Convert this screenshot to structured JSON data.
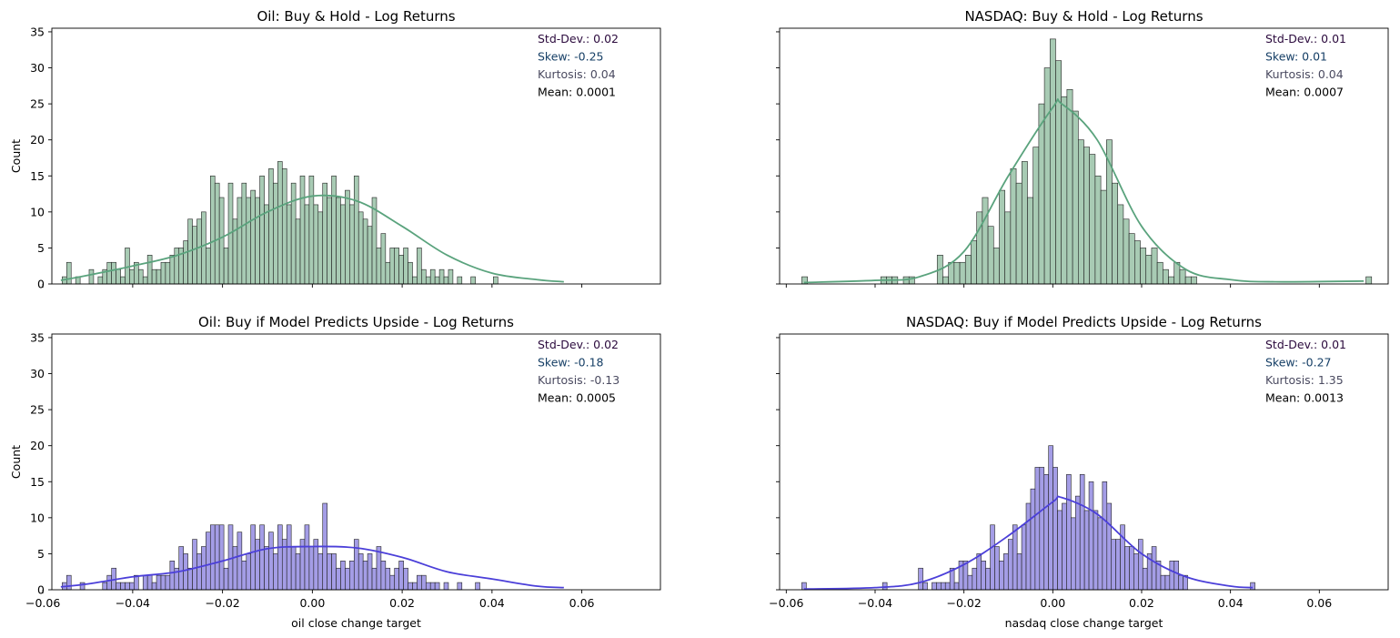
{
  "colors": {
    "green_fill": "#a8cbb4",
    "green_line": "#5aa37d",
    "purple_fill": "#a49de6",
    "purple_line": "#4b3fd9",
    "stat_std": "#2b0a3d",
    "stat_skew": "#163f66",
    "stat_kurt": "#4a4a60",
    "stat_mean": "#000000"
  },
  "chart_data": [
    {
      "type": "histogram",
      "title": "Oil: Buy & Hold - Log Returns",
      "xlabel": "",
      "ylabel": "Count",
      "xlim": [
        -0.058,
        0.0775
      ],
      "ylim": [
        0,
        35.5
      ],
      "xticks": [
        "−0.06",
        "−0.04",
        "−0.02",
        "0.00",
        "0.02",
        "0.04",
        "0.06"
      ],
      "xtick_values": [
        -0.06,
        -0.04,
        -0.02,
        0.0,
        0.02,
        0.04,
        0.06
      ],
      "show_xtick_labels": false,
      "yticks": [
        0,
        5,
        10,
        15,
        20,
        25,
        30,
        35
      ],
      "show_ytick_labels": true,
      "color": "green",
      "bin_start": -0.0557,
      "bin_width": 0.001,
      "counts": [
        1,
        3,
        0,
        1,
        0,
        0,
        2,
        0,
        1,
        2,
        3,
        3,
        2,
        1,
        5,
        2,
        3,
        2,
        1,
        4,
        2,
        2,
        3,
        3,
        4,
        5,
        5,
        6,
        9,
        8,
        9,
        10,
        5,
        15,
        14,
        12,
        5,
        14,
        9,
        12,
        14,
        12,
        13,
        12,
        15,
        11,
        16,
        14,
        17,
        16,
        11,
        14,
        9,
        15,
        11,
        15,
        11,
        10,
        14,
        12,
        15,
        12,
        11,
        13,
        11,
        15,
        10,
        9,
        8,
        12,
        5,
        7,
        3,
        5,
        5,
        4,
        5,
        3,
        1,
        5,
        2,
        1,
        2,
        1,
        2,
        1,
        2,
        0,
        1,
        0,
        0,
        1,
        0,
        0,
        0,
        0,
        1
      ],
      "kde_x": [
        -0.056,
        -0.05,
        -0.04,
        -0.03,
        -0.02,
        -0.01,
        0.0,
        0.01,
        0.02,
        0.03,
        0.04,
        0.05,
        0.056
      ],
      "kde_y": [
        0.5,
        1.2,
        2.5,
        4.0,
        6.5,
        10.0,
        12.2,
        11.5,
        8.0,
        4.0,
        1.5,
        0.6,
        0.3
      ],
      "stats": {
        "std": "Std-Dev.: 0.02",
        "skew": "Skew: -0.25",
        "kurt": "Kurtosis: 0.04",
        "mean": "Mean: 0.0001"
      }
    },
    {
      "type": "histogram",
      "title": "NASDAQ: Buy & Hold - Log Returns",
      "xlabel": "",
      "ylabel": "",
      "xlim": [
        -0.0615,
        0.0755
      ],
      "ylim": [
        0,
        35.5
      ],
      "xticks": [
        "−0.06",
        "−0.04",
        "−0.02",
        "0.00",
        "0.02",
        "0.04",
        "0.06"
      ],
      "xtick_values": [
        -0.06,
        -0.04,
        -0.02,
        0.0,
        0.02,
        0.04,
        0.06
      ],
      "show_xtick_labels": false,
      "yticks": [
        0,
        5,
        10,
        15,
        20,
        25,
        30,
        35
      ],
      "show_ytick_labels": false,
      "color": "green",
      "bin_start": -0.0565,
      "bin_width": 0.00127,
      "counts": [
        1,
        0,
        0,
        0,
        0,
        0,
        0,
        0,
        0,
        0,
        0,
        0,
        0,
        0,
        1,
        1,
        1,
        0,
        1,
        1,
        0,
        0,
        0,
        0,
        4,
        1,
        3,
        3,
        3,
        4,
        6,
        10,
        12,
        8,
        5,
        13,
        10,
        16,
        14,
        17,
        12,
        19,
        25,
        30,
        34,
        31,
        26,
        27,
        24,
        20,
        19,
        18,
        15,
        13,
        20,
        14,
        11,
        9,
        7,
        6,
        5,
        4,
        5,
        3,
        2,
        1,
        3,
        2,
        1,
        1,
        0,
        0,
        0,
        0,
        0,
        0,
        0,
        0,
        0,
        0,
        0,
        0,
        0,
        0,
        0,
        0,
        0,
        0,
        0,
        0,
        0,
        0,
        0,
        0,
        0,
        0,
        0,
        0,
        0,
        0,
        1
      ],
      "kde_x": [
        -0.056,
        -0.04,
        -0.03,
        -0.02,
        -0.01,
        0.0,
        0.002,
        0.01,
        0.02,
        0.03,
        0.04,
        0.05,
        0.07
      ],
      "kde_y": [
        0.2,
        0.5,
        1.0,
        4.5,
        15.0,
        24.5,
        25.0,
        20.0,
        8.0,
        2.0,
        0.6,
        0.3,
        0.4
      ],
      "stats": {
        "std": "Std-Dev.: 0.01",
        "skew": "Skew: 0.01",
        "kurt": "Kurtosis: 0.04",
        "mean": "Mean: 0.0007"
      }
    },
    {
      "type": "histogram",
      "title": "Oil: Buy if Model Predicts Upside - Log Returns",
      "xlabel": "oil close change target",
      "ylabel": "Count",
      "xlim": [
        -0.058,
        0.0775
      ],
      "ylim": [
        0,
        35.5
      ],
      "xticks": [
        "−0.06",
        "−0.04",
        "−0.02",
        "0.00",
        "0.02",
        "0.04",
        "0.06"
      ],
      "xtick_values": [
        -0.06,
        -0.04,
        -0.02,
        0.0,
        0.02,
        0.04,
        0.06
      ],
      "show_xtick_labels": true,
      "yticks": [
        0,
        5,
        10,
        15,
        20,
        25,
        30,
        35
      ],
      "show_ytick_labels": true,
      "color": "purple",
      "bin_start": -0.0557,
      "bin_width": 0.001,
      "counts": [
        1,
        2,
        0,
        0,
        1,
        0,
        0,
        0,
        0,
        1,
        2,
        3,
        1,
        1,
        1,
        1,
        2,
        0,
        2,
        2,
        1,
        2,
        2,
        2,
        4,
        3,
        6,
        5,
        3,
        7,
        5,
        6,
        8,
        9,
        9,
        9,
        3,
        9,
        6,
        8,
        4,
        5,
        9,
        7,
        9,
        6,
        8,
        5,
        9,
        7,
        9,
        6,
        5,
        7,
        9,
        6,
        7,
        5,
        12,
        5,
        5,
        3,
        4,
        3,
        4,
        7,
        5,
        4,
        5,
        3,
        6,
        4,
        3,
        2,
        3,
        4,
        3,
        1,
        1,
        2,
        2,
        1,
        1,
        1,
        0,
        1,
        0,
        0,
        1,
        0,
        0,
        0,
        1
      ],
      "kde_x": [
        -0.056,
        -0.05,
        -0.04,
        -0.03,
        -0.02,
        -0.01,
        0.0,
        0.01,
        0.02,
        0.03,
        0.04,
        0.05,
        0.056
      ],
      "kde_y": [
        0.4,
        0.8,
        1.8,
        2.5,
        4.0,
        5.7,
        6.0,
        5.8,
        4.5,
        2.5,
        1.5,
        0.5,
        0.3
      ],
      "stats": {
        "std": "Std-Dev.: 0.02",
        "skew": "Skew: -0.18",
        "kurt": "Kurtosis: -0.13",
        "mean": "Mean: 0.0005"
      }
    },
    {
      "type": "histogram",
      "title": "NASDAQ: Buy if Model Predicts Upside - Log Returns",
      "xlabel": "nasdaq close change target",
      "ylabel": "",
      "xlim": [
        -0.0615,
        0.0755
      ],
      "ylim": [
        0,
        35.5
      ],
      "xticks": [
        "−0.06",
        "−0.04",
        "−0.02",
        "0.00",
        "0.02",
        "0.04",
        "0.06"
      ],
      "xtick_values": [
        -0.06,
        -0.04,
        -0.02,
        0.0,
        0.02,
        0.04,
        0.06
      ],
      "show_xtick_labels": true,
      "yticks": [
        0,
        5,
        10,
        15,
        20,
        25,
        30,
        35
      ],
      "show_ytick_labels": false,
      "color": "purple",
      "bin_start": -0.0565,
      "bin_width": 0.00101,
      "counts": [
        1,
        0,
        0,
        0,
        0,
        0,
        0,
        0,
        0,
        0,
        0,
        0,
        0,
        0,
        0,
        0,
        0,
        0,
        1,
        0,
        0,
        0,
        0,
        0,
        0,
        0,
        3,
        1,
        0,
        1,
        1,
        1,
        1,
        3,
        1,
        4,
        4,
        2,
        3,
        5,
        4,
        3,
        9,
        6,
        4,
        5,
        7,
        9,
        5,
        9,
        12,
        14,
        17,
        17,
        16,
        20,
        17,
        11,
        12,
        16,
        10,
        13,
        16,
        11,
        15,
        11,
        10,
        15,
        12,
        7,
        7,
        9,
        6,
        6,
        5,
        7,
        3,
        5,
        6,
        4,
        2,
        2,
        4,
        4,
        2,
        2,
        0,
        0,
        0,
        0,
        0,
        0,
        0,
        0,
        0,
        0,
        0,
        0,
        0,
        0,
        1
      ],
      "kde_x": [
        -0.056,
        -0.04,
        -0.03,
        -0.02,
        -0.01,
        0.0,
        0.002,
        0.01,
        0.02,
        0.03,
        0.04,
        0.045
      ],
      "kde_y": [
        0.1,
        0.3,
        1.0,
        3.5,
        7.5,
        12.2,
        12.8,
        10.5,
        5.0,
        1.8,
        0.5,
        0.3
      ],
      "stats": {
        "std": "Std-Dev.: 0.01",
        "skew": "Skew: -0.27",
        "kurt": "Kurtosis: 1.35",
        "mean": "Mean: 0.0013"
      }
    }
  ]
}
